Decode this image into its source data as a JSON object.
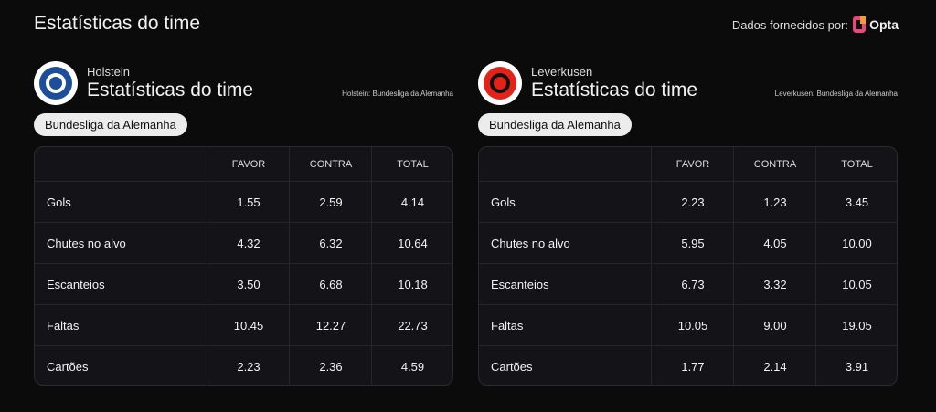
{
  "header": {
    "title": "Estatísticas do time",
    "provider_label": "Dados fornecidos por:",
    "provider_name": "Opta"
  },
  "panels": [
    {
      "team": "Holstein",
      "title": "Estatísticas do time",
      "source": "Holstein: Bundesliga da Alemanha",
      "competition": "Bundesliga da Alemanha",
      "table": {
        "columns": [
          "FAVOR",
          "CONTRA",
          "TOTAL"
        ],
        "rows": [
          [
            "Gols",
            "1.55",
            "2.59",
            "4.14"
          ],
          [
            "Chutes no alvo",
            "4.32",
            "6.32",
            "10.64"
          ],
          [
            "Escanteios",
            "3.50",
            "6.68",
            "10.18"
          ],
          [
            "Faltas",
            "10.45",
            "12.27",
            "22.73"
          ],
          [
            "Cartões",
            "2.23",
            "2.36",
            "4.59"
          ]
        ]
      }
    },
    {
      "team": "Leverkusen",
      "title": "Estatísticas do time",
      "source": "Leverkusen: Bundesliga da Alemanha",
      "competition": "Bundesliga da Alemanha",
      "table": {
        "columns": [
          "FAVOR",
          "CONTRA",
          "TOTAL"
        ],
        "rows": [
          [
            "Gols",
            "2.23",
            "1.23",
            "3.45"
          ],
          [
            "Chutes no alvo",
            "5.95",
            "4.05",
            "10.00"
          ],
          [
            "Escanteios",
            "6.73",
            "3.32",
            "10.05"
          ],
          [
            "Faltas",
            "10.05",
            "9.00",
            "19.05"
          ],
          [
            "Cartões",
            "1.77",
            "2.14",
            "3.91"
          ]
        ]
      }
    }
  ]
}
